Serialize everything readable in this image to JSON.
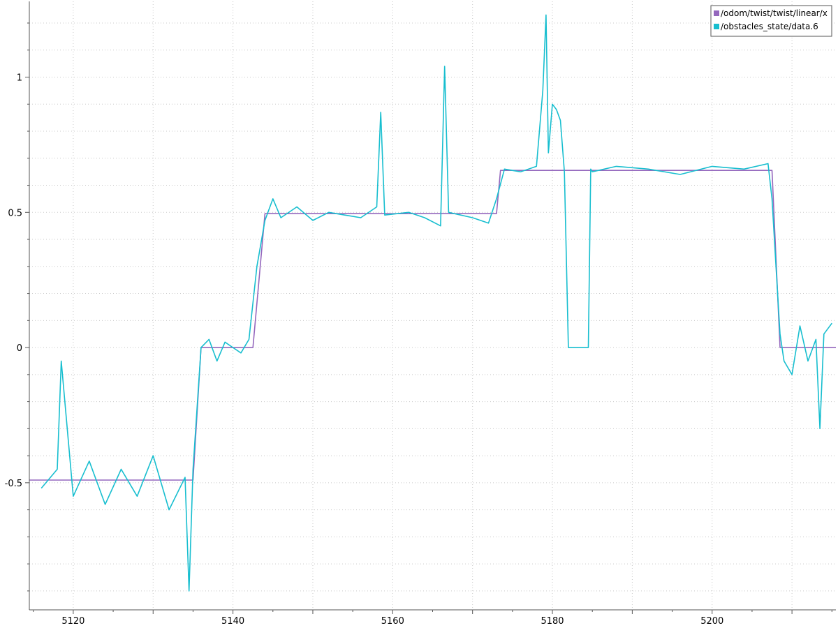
{
  "chart_data": {
    "type": "line",
    "title": "",
    "xlabel": "",
    "ylabel": "",
    "xlim": [
      5114.5,
      5215.5
    ],
    "ylim": [
      -0.97,
      1.28
    ],
    "grid": true,
    "legend_placement": "top-right",
    "x_ticks": [
      5120,
      5140,
      5160,
      5180,
      5200
    ],
    "y_ticks": [
      -0.5,
      0,
      0.5,
      1
    ],
    "x_tick_labels": [
      "5120",
      "5140",
      "5160",
      "5180",
      "5200"
    ],
    "y_tick_labels": [
      "-0.5",
      "0",
      "0.5",
      "1"
    ],
    "legend": [
      {
        "label": "/odom/twist/twist/linear/x",
        "color": "#9467bd"
      },
      {
        "label": "/obstacles_state/data.6",
        "color": "#17becf"
      }
    ],
    "series": [
      {
        "name": "/odom/twist/twist/linear/x",
        "color": "#9467bd",
        "x": [
          5114.5,
          5135.0,
          5136.0,
          5142.5,
          5144.0,
          5173.0,
          5173.5,
          5207.5,
          5208.5,
          5215.5
        ],
        "y": [
          -0.49,
          -0.49,
          0.0,
          0.0,
          0.495,
          0.495,
          0.655,
          0.655,
          0.0,
          0.0
        ]
      },
      {
        "name": "/obstacles_state/data.6",
        "color": "#17becf",
        "x": [
          5116.0,
          5118.0,
          5118.5,
          5120.0,
          5122.0,
          5124.0,
          5126.0,
          5128.0,
          5130.0,
          5132.0,
          5134.0,
          5134.5,
          5135.0,
          5136.0,
          5137.0,
          5138.0,
          5139.0,
          5140.0,
          5141.0,
          5142.0,
          5143.0,
          5144.0,
          5145.0,
          5146.0,
          5148.0,
          5150.0,
          5152.0,
          5154.0,
          5156.0,
          5158.0,
          5158.5,
          5159.0,
          5162.0,
          5164.0,
          5166.0,
          5166.5,
          5167.0,
          5170.0,
          5172.0,
          5173.0,
          5174.0,
          5176.0,
          5178.0,
          5178.8,
          5179.2,
          5179.5,
          5180.0,
          5180.5,
          5181.0,
          5181.5,
          5182.0,
          5184.5,
          5184.8,
          5185.0,
          5188.0,
          5192.0,
          5196.0,
          5200.0,
          5204.0,
          5207.0,
          5207.5,
          5208.0,
          5208.5,
          5209.0,
          5210.0,
          5211.0,
          5212.0,
          5213.0,
          5213.5,
          5214.0,
          5215.0
        ],
        "y": [
          -0.52,
          -0.45,
          -0.05,
          -0.55,
          -0.42,
          -0.58,
          -0.45,
          -0.55,
          -0.4,
          -0.6,
          -0.48,
          -0.9,
          -0.45,
          0.0,
          0.03,
          -0.05,
          0.02,
          0.0,
          -0.02,
          0.03,
          0.3,
          0.47,
          0.55,
          0.48,
          0.52,
          0.47,
          0.5,
          0.49,
          0.48,
          0.52,
          0.87,
          0.49,
          0.5,
          0.48,
          0.45,
          1.04,
          0.5,
          0.48,
          0.46,
          0.55,
          0.66,
          0.65,
          0.67,
          0.95,
          1.23,
          0.72,
          0.9,
          0.88,
          0.84,
          0.65,
          0.0,
          0.0,
          0.66,
          0.65,
          0.67,
          0.66,
          0.64,
          0.67,
          0.66,
          0.68,
          0.55,
          0.3,
          0.05,
          -0.05,
          -0.1,
          0.08,
          -0.05,
          0.03,
          -0.3,
          0.05,
          0.09
        ]
      }
    ]
  }
}
